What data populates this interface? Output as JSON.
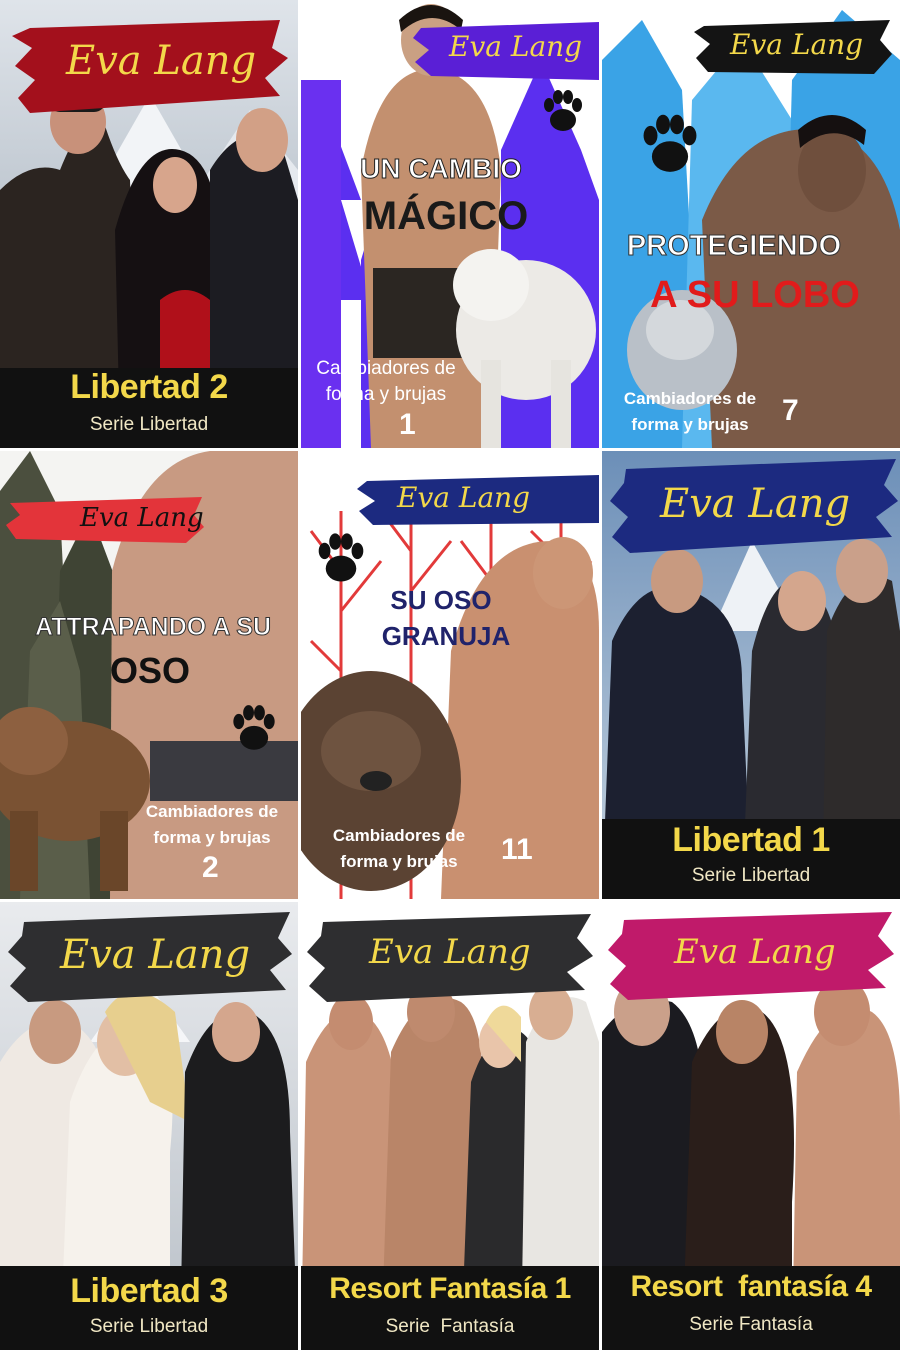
{
  "covers": [
    {
      "author": "Eva Lang",
      "title": "Libertad 2",
      "series": "Serie Libertad"
    },
    {
      "author": "Eva Lang",
      "headline1": "UN CAMBIO",
      "headline2": "MÁGICO",
      "series": "Cambiadores de forma y brujas",
      "series_line1": "Cambiadores de",
      "series_line2": "forma y brujas",
      "number": "1"
    },
    {
      "author": "Eva Lang",
      "headline1": "PROTEGIENDO",
      "headline2": "A SU LOBO",
      "series_line1": "Cambiadores de",
      "series_line2": "forma y brujas",
      "number": "7"
    },
    {
      "author": "Eva Lang",
      "headline1": "ATTRAPANDO A SU",
      "headline2": "OSO",
      "series_line1": "Cambiadores de",
      "series_line2": "forma y brujas",
      "number": "2"
    },
    {
      "author": "Eva Lang",
      "headline1": "SU OSO",
      "headline2": "GRANUJA",
      "series_line1": "Cambiadores de",
      "series_line2": "forma y brujas",
      "number": "11"
    },
    {
      "author": "Eva Lang",
      "title": "Libertad 1",
      "series": "Serie Libertad"
    },
    {
      "author": "Eva Lang",
      "title": "Libertad 3",
      "series": "Serie Libertad"
    },
    {
      "author": "Eva Lang",
      "title": "Resort Fantasía 1",
      "series": "Serie  Fantasía"
    },
    {
      "author": "Eva Lang",
      "title": "Resort  fantasía 4",
      "series": "Serie Fantasía"
    }
  ],
  "colors": {
    "gold": "#f3d84a",
    "red_brush": "#a3101c",
    "purple_brush": "#5a1fd6",
    "navy_brush": "#1c2a80",
    "dark_brush": "#2e2e30",
    "pink_brush": "#c01a6a",
    "black_brush": "#141414",
    "headline_red": "#e11b1b",
    "headline_navy": "#20236b"
  }
}
